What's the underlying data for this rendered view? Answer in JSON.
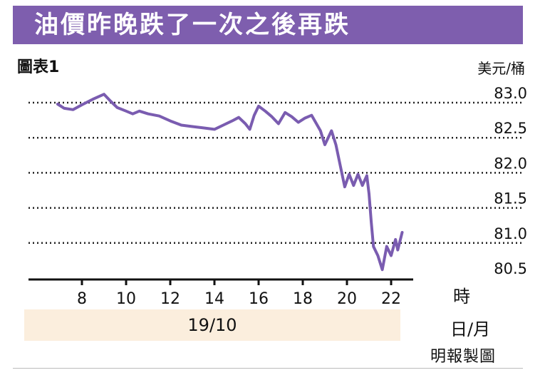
{
  "title": "油價昨晚跌了一次之後再跌",
  "chart_label": "圖表1",
  "credit": "明報製圖",
  "date_band": "19/10",
  "colors": {
    "banner": "#7e5eae",
    "line": "#7a5cb0",
    "band": "#fbeedd"
  },
  "chart_data": {
    "type": "line",
    "title": "圖表1",
    "xlabel": "時",
    "xlabel2": "日/月",
    "ylabel": "美元/桶",
    "xlim": [
      6,
      24
    ],
    "ylim": [
      80.5,
      83.0
    ],
    "xticks": [
      8,
      10,
      12,
      14,
      16,
      18,
      20,
      22
    ],
    "yticks": [
      "83.0",
      "82.5",
      "82.0",
      "81.5",
      "81.0",
      "80.5"
    ],
    "grid": "horizontal dotted",
    "series": [
      {
        "points": [
          [
            6.9,
            82.98
          ],
          [
            7.2,
            82.92
          ],
          [
            7.6,
            82.9
          ],
          [
            8.0,
            82.97
          ],
          [
            8.5,
            83.05
          ],
          [
            9.0,
            83.12
          ],
          [
            9.3,
            83.02
          ],
          [
            9.6,
            82.93
          ],
          [
            10.0,
            82.88
          ],
          [
            10.3,
            82.84
          ],
          [
            10.6,
            82.88
          ],
          [
            11.0,
            82.84
          ],
          [
            11.5,
            82.81
          ],
          [
            12.0,
            82.74
          ],
          [
            12.5,
            82.68
          ],
          [
            13.0,
            82.66
          ],
          [
            13.5,
            82.64
          ],
          [
            14.0,
            82.62
          ],
          [
            14.4,
            82.68
          ],
          [
            14.8,
            82.74
          ],
          [
            15.1,
            82.79
          ],
          [
            15.4,
            82.7
          ],
          [
            15.6,
            82.62
          ],
          [
            15.8,
            82.82
          ],
          [
            16.0,
            82.95
          ],
          [
            16.3,
            82.88
          ],
          [
            16.6,
            82.8
          ],
          [
            16.9,
            82.7
          ],
          [
            17.2,
            82.86
          ],
          [
            17.5,
            82.8
          ],
          [
            17.8,
            82.72
          ],
          [
            18.1,
            82.78
          ],
          [
            18.4,
            82.82
          ],
          [
            18.8,
            82.6
          ],
          [
            19.0,
            82.4
          ],
          [
            19.3,
            82.6
          ],
          [
            19.5,
            82.4
          ],
          [
            19.7,
            82.1
          ],
          [
            19.9,
            81.8
          ],
          [
            20.1,
            81.98
          ],
          [
            20.3,
            81.82
          ],
          [
            20.5,
            81.98
          ],
          [
            20.7,
            81.82
          ],
          [
            20.9,
            81.96
          ],
          [
            21.0,
            81.7
          ],
          [
            21.1,
            81.3
          ],
          [
            21.2,
            80.95
          ],
          [
            21.4,
            80.82
          ],
          [
            21.6,
            80.62
          ],
          [
            21.8,
            80.95
          ],
          [
            22.0,
            80.82
          ],
          [
            22.2,
            81.05
          ],
          [
            22.3,
            80.9
          ],
          [
            22.5,
            81.15
          ]
        ]
      }
    ]
  }
}
